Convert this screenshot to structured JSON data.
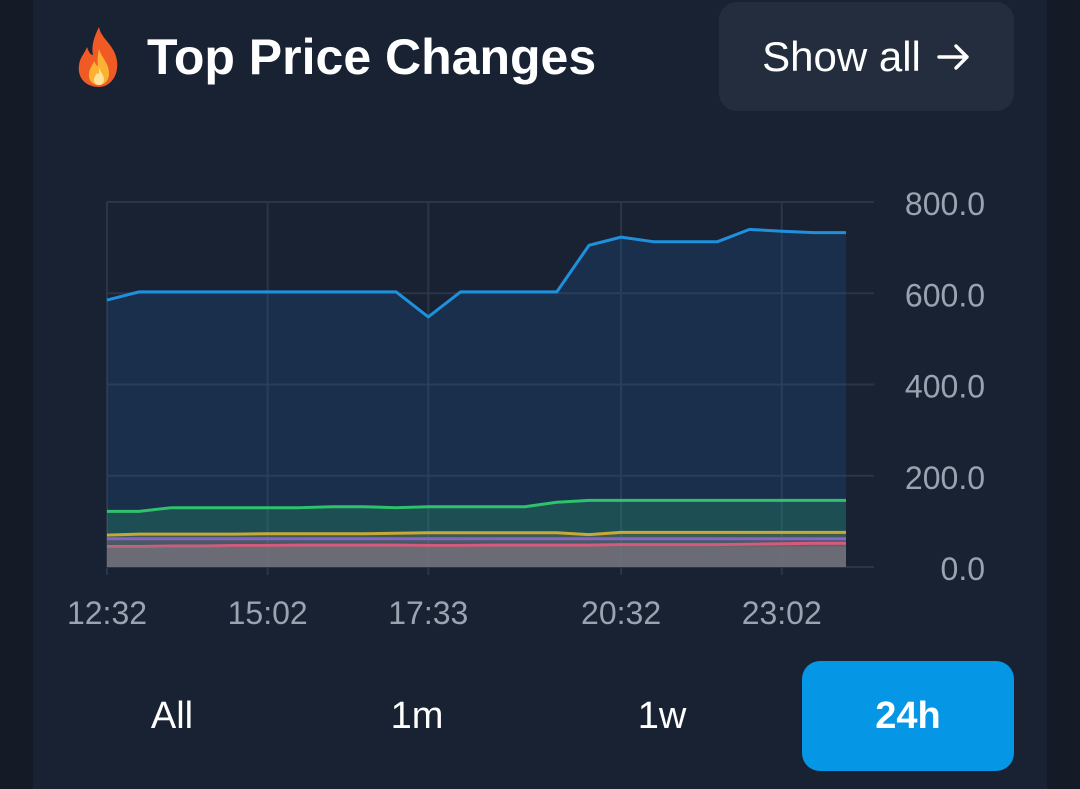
{
  "header": {
    "title": "Top Price Changes",
    "show_all_label": "Show all",
    "show_all_icon": "arrow-right-icon",
    "title_icon": "fire-icon"
  },
  "tabs": [
    {
      "label": "All",
      "active": false
    },
    {
      "label": "1m",
      "active": false
    },
    {
      "label": "1w",
      "active": false
    },
    {
      "label": "24h",
      "active": true
    }
  ],
  "colors": {
    "background": "#192233",
    "accent": "#0597e6",
    "grid": "#2a3547"
  },
  "chart_data": {
    "type": "area",
    "x_ticks": [
      "12:32",
      "15:02",
      "17:33",
      "20:32",
      "23:02"
    ],
    "y_ticks": [
      "800.0",
      "600.0",
      "400.0",
      "200.0",
      "0.0"
    ],
    "ylim": [
      0,
      800
    ],
    "grid": true,
    "y_axis_position": "right",
    "x_count": 24,
    "series": [
      {
        "color": "#1e90dc",
        "fill": "rgba(30,110,190,0.18)",
        "values": [
          585,
          603,
          603,
          603,
          603,
          603,
          603,
          603,
          603,
          603,
          548,
          603,
          603,
          603,
          603,
          705,
          723,
          713,
          713,
          713,
          740,
          736,
          733,
          733
        ]
      },
      {
        "color": "#2ec26a",
        "fill": "rgba(40,170,110,0.25)",
        "values": [
          122,
          122,
          130,
          130,
          130,
          130,
          130,
          132,
          132,
          130,
          132,
          132,
          132,
          132,
          142,
          146,
          146,
          146,
          146,
          146,
          146,
          146,
          146,
          146
        ]
      },
      {
        "color": "#c9a83a",
        "fill": "rgba(150,130,60,0.25)",
        "values": [
          70,
          72,
          72,
          72,
          72,
          73,
          73,
          73,
          73,
          74,
          75,
          75,
          75,
          75,
          75,
          71,
          76,
          76,
          76,
          76,
          76,
          76,
          76,
          76
        ]
      },
      {
        "color": "#8a63c9",
        "fill": "rgba(110,90,160,0.25)",
        "values": [
          62,
          62,
          62,
          62,
          62,
          62,
          62,
          62,
          62,
          62,
          62,
          62,
          62,
          62,
          62,
          62,
          62,
          62,
          62,
          62,
          62,
          62,
          62,
          62
        ]
      },
      {
        "color": "#d65a7c",
        "fill": "rgba(140,110,120,0.35)",
        "values": [
          45,
          45,
          46,
          46,
          47,
          47,
          48,
          48,
          48,
          48,
          47,
          47,
          48,
          48,
          48,
          48,
          49,
          49,
          49,
          49,
          50,
          51,
          52,
          52
        ]
      }
    ]
  }
}
